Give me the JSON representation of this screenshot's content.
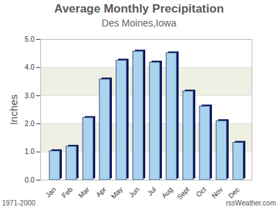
{
  "chart_data": {
    "type": "bar",
    "title": "Average Monthly Precipitation",
    "subtitle": "Des Moines,Iowa",
    "ylabel": "Inches",
    "categories": [
      "Jan",
      "Feb",
      "Mar",
      "Apr",
      "May",
      "Jun",
      "Jul",
      "Aug",
      "Sept",
      "Oct",
      "Nov",
      "Dec"
    ],
    "values": [
      1.03,
      1.19,
      2.21,
      3.58,
      4.25,
      4.57,
      4.18,
      4.51,
      3.15,
      2.62,
      2.1,
      1.33
    ],
    "color": "#a9d3ee",
    "ylim": [
      0,
      5
    ],
    "yticks": [
      {
        "value": 0,
        "label": "0.0"
      },
      {
        "value": 1,
        "label": "1.0"
      },
      {
        "value": 2,
        "label": "2.0"
      },
      {
        "value": 3,
        "label": "3.0"
      },
      {
        "value": 4,
        "label": "4.0"
      },
      {
        "value": 5,
        "label": "5.0"
      }
    ],
    "grid": true,
    "caption": "1971-2000",
    "source": "rssWeather.com"
  }
}
